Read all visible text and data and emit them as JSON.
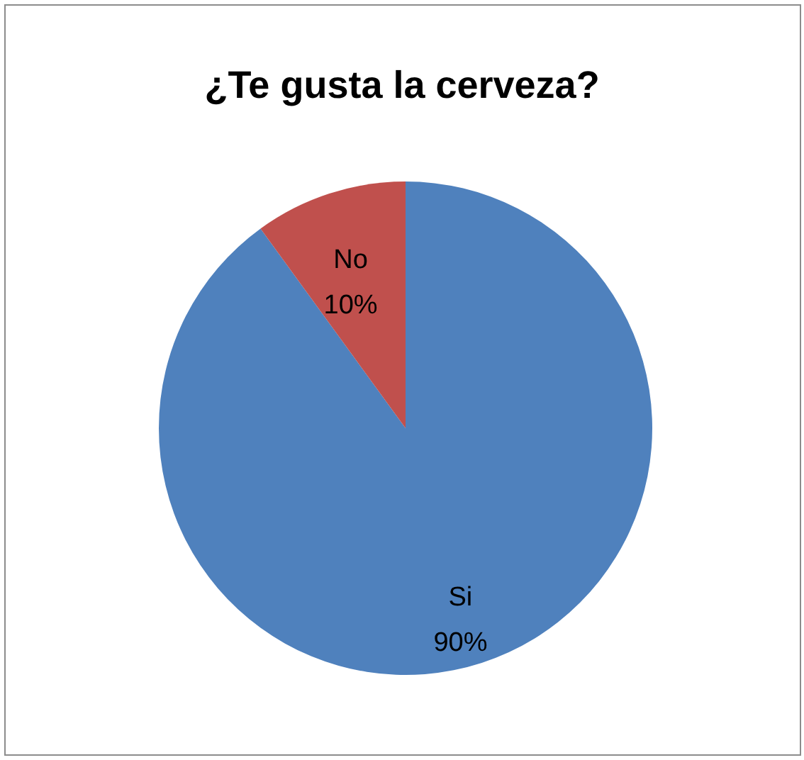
{
  "chart_data": {
    "type": "pie",
    "title": "¿Te gusta la cerveza?",
    "categories": [
      "Si",
      "No"
    ],
    "values": [
      90,
      10
    ],
    "value_labels": [
      "90%",
      "10%"
    ],
    "colors": [
      "#4f81bd",
      "#c0504d"
    ]
  }
}
